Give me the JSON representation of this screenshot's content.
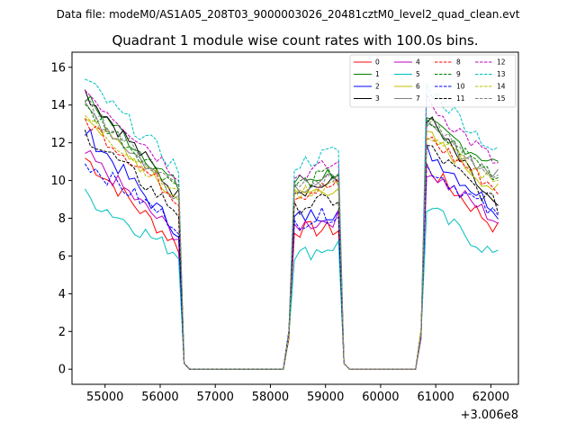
{
  "suptitle": "Data file: modeM0/AS1A05_208T03_9000003026_20481cztM0_level2_quad_clean.evt",
  "chart_data": {
    "type": "line",
    "title": "Quadrant 1 module wise count rates with 100.0s bins.",
    "xlabel": "",
    "ylabel": "",
    "x_offset_label": "+3.006e8",
    "xlim": [
      54400,
      62500
    ],
    "ylim": [
      -0.8,
      16.8
    ],
    "x_ticks": [
      55000,
      56000,
      57000,
      58000,
      59000,
      60000,
      61000,
      62000
    ],
    "x_tick_labels": [
      "55000",
      "56000",
      "57000",
      "58000",
      "59000",
      "60000",
      "61000",
      "62000"
    ],
    "y_ticks": [
      0,
      2,
      4,
      6,
      8,
      10,
      12,
      14,
      16
    ],
    "y_tick_labels": [
      "0",
      "2",
      "4",
      "6",
      "8",
      "10",
      "12",
      "14",
      "16"
    ],
    "grid": false,
    "legend_position": "top-right",
    "segments": [
      {
        "start": 54635,
        "end": 56335
      },
      {
        "start": 58435,
        "end": 59235
      },
      {
        "start": 60835,
        "end": 62135
      }
    ],
    "gap_value": 0,
    "series": [
      {
        "name": "0",
        "color": "#ff0000",
        "style": "solid",
        "seg_levels": [
          [
            11.2,
            6.5
          ],
          [
            7.4,
            7.4
          ],
          [
            10.7,
            7.4
          ]
        ]
      },
      {
        "name": "1",
        "color": "#008000",
        "style": "solid",
        "seg_levels": [
          [
            14.4,
            9.6
          ],
          [
            9.9,
            10.5
          ],
          [
            13.0,
            10.8
          ]
        ]
      },
      {
        "name": "2",
        "color": "#0000ff",
        "style": "solid",
        "seg_levels": [
          [
            12.6,
            7.3
          ],
          [
            8.0,
            8.4
          ],
          [
            11.6,
            8.4
          ]
        ]
      },
      {
        "name": "3",
        "color": "#000000",
        "style": "solid",
        "seg_levels": [
          [
            14.7,
            9.2
          ],
          [
            9.5,
            9.9
          ],
          [
            13.4,
            8.3
          ]
        ]
      },
      {
        "name": "4",
        "color": "#bf00bf",
        "style": "solid",
        "seg_levels": [
          [
            11.4,
            7.0
          ],
          [
            7.6,
            8.0
          ],
          [
            10.6,
            7.8
          ]
        ]
      },
      {
        "name": "5",
        "color": "#00bfbf",
        "style": "solid",
        "seg_levels": [
          [
            9.2,
            6.1
          ],
          [
            6.0,
            6.6
          ],
          [
            8.6,
            5.9
          ]
        ]
      },
      {
        "name": "6",
        "color": "#bfbf00",
        "style": "solid",
        "seg_levels": [
          [
            13.5,
            8.9
          ],
          [
            9.2,
            9.7
          ],
          [
            12.4,
            9.4
          ]
        ]
      },
      {
        "name": "7",
        "color": "#808080",
        "style": "solid",
        "seg_levels": [
          [
            13.9,
            9.2
          ],
          [
            9.7,
            10.0
          ],
          [
            12.7,
            10.2
          ]
        ]
      },
      {
        "name": "8",
        "color": "#ff0000",
        "style": "dashed",
        "seg_levels": [
          [
            13.2,
            9.0
          ],
          [
            9.2,
            9.8
          ],
          [
            12.3,
            9.5
          ]
        ]
      },
      {
        "name": "9",
        "color": "#008000",
        "style": "dashed",
        "seg_levels": [
          [
            13.8,
            9.7
          ],
          [
            9.7,
            10.5
          ],
          [
            12.9,
            10.2
          ]
        ]
      },
      {
        "name": "10",
        "color": "#0000ff",
        "style": "dashed",
        "seg_levels": [
          [
            11.0,
            7.6
          ],
          [
            7.8,
            8.3
          ],
          [
            10.8,
            8.0
          ]
        ]
      },
      {
        "name": "11",
        "color": "#000000",
        "style": "dashed",
        "seg_levels": [
          [
            12.5,
            8.3
          ],
          [
            8.6,
            9.0
          ],
          [
            11.8,
            8.6
          ]
        ]
      },
      {
        "name": "12",
        "color": "#bf00bf",
        "style": "dashed",
        "seg_levels": [
          [
            14.8,
            10.3
          ],
          [
            10.2,
            10.9
          ],
          [
            14.2,
            10.8
          ]
        ]
      },
      {
        "name": "13",
        "color": "#00bfbf",
        "style": "dashed",
        "seg_levels": [
          [
            15.3,
            10.6
          ],
          [
            10.8,
            11.6
          ],
          [
            15.0,
            11.4
          ]
        ]
      },
      {
        "name": "14",
        "color": "#bfbf00",
        "style": "dashed",
        "seg_levels": [
          [
            13.4,
            9.2
          ],
          [
            9.3,
            9.9
          ],
          [
            12.6,
            9.6
          ]
        ]
      },
      {
        "name": "15",
        "color": "#808080",
        "style": "dashed",
        "seg_levels": [
          [
            14.1,
            9.5
          ],
          [
            9.6,
            10.2
          ],
          [
            13.2,
            9.9
          ]
        ]
      }
    ]
  }
}
